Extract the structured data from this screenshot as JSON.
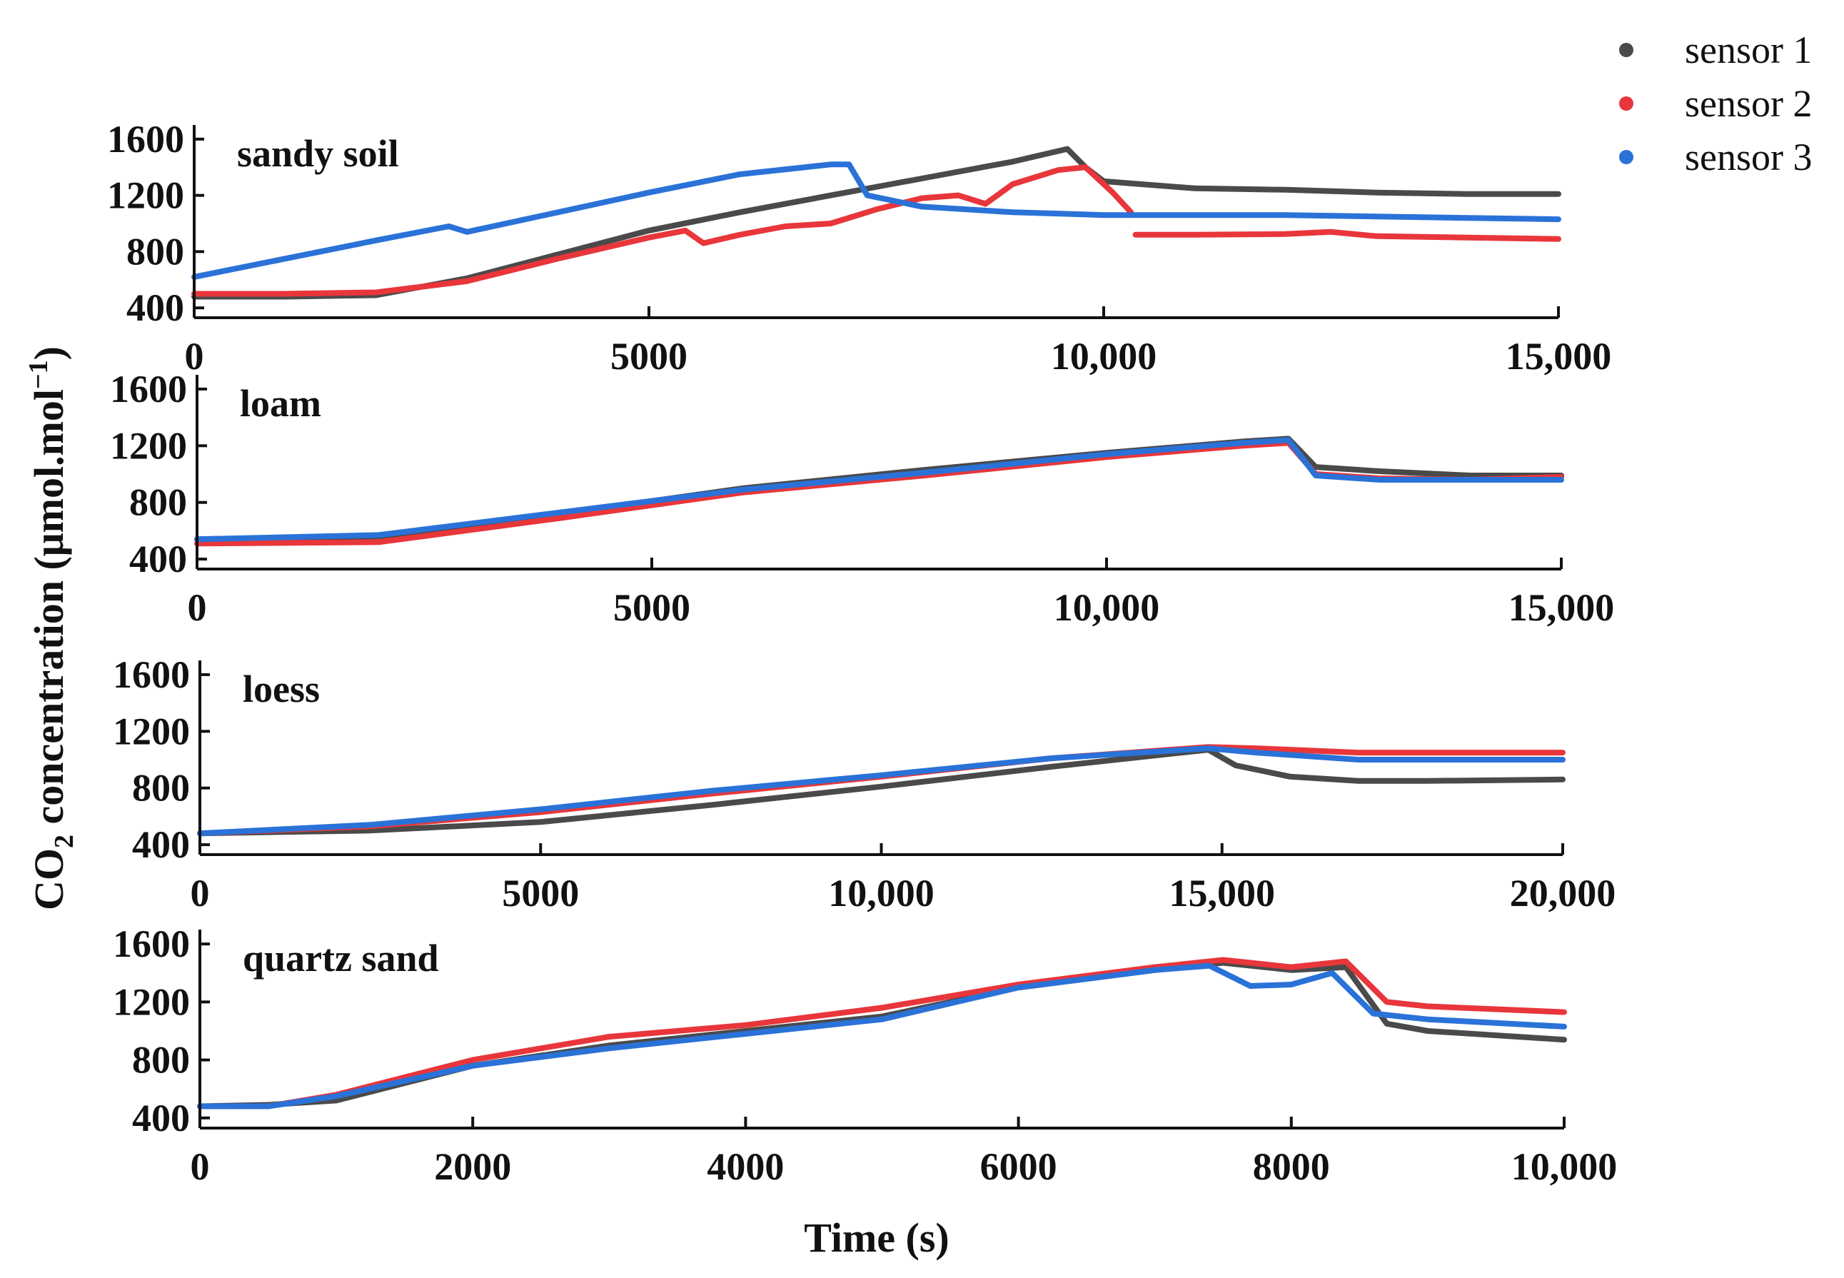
{
  "chart_data": {
    "type": "line",
    "ylabel_main": "CO",
    "ylabel_sub": "2",
    "ylabel_rest": " concentration (μmol.mol",
    "ylabel_sup": "−1",
    "ylabel_close": ")",
    "xlabel": "Time (s)",
    "legend": [
      {
        "name": "sensor 1",
        "color": "#4a4a4a"
      },
      {
        "name": "sensor 2",
        "color": "#e8363b"
      },
      {
        "name": "sensor 3",
        "color": "#2a72d8"
      }
    ],
    "panels": [
      {
        "title": "sandy soil",
        "xlim": [
          0,
          15000
        ],
        "ylim": [
          330,
          1650
        ],
        "xticks": [
          0,
          5000,
          10000,
          15000
        ],
        "xtick_labels": [
          "0",
          "5000",
          "10,000",
          "15,000"
        ],
        "yticks": [
          400,
          800,
          1200,
          1600
        ],
        "ytick_labels": [
          "400",
          "800",
          "1200",
          "1600"
        ],
        "series": [
          {
            "name": "sensor 1",
            "x": [
              0,
              1000,
              2000,
              3000,
              4000,
              5000,
              6000,
              7000,
              8000,
              9000,
              9600,
              9800,
              10000,
              11000,
              12000,
              13000,
              14000,
              15000
            ],
            "y": [
              480,
              480,
              490,
              610,
              780,
              950,
              1080,
              1200,
              1320,
              1440,
              1530,
              1400,
              1300,
              1250,
              1240,
              1220,
              1210,
              1210
            ]
          },
          {
            "name": "sensor 2",
            "segments": [
              {
                "x": [
                  0,
                  1000,
                  2000,
                  3000,
                  4000,
                  5000,
                  5400,
                  5600,
                  6000,
                  6500,
                  7000,
                  7500,
                  8000,
                  8400,
                  8700,
                  9000,
                  9500,
                  9800,
                  10100,
                  10300
                ],
                "y": [
                  500,
                  500,
                  510,
                  590,
                  750,
                  900,
                  950,
                  860,
                  920,
                  980,
                  1000,
                  1100,
                  1180,
                  1200,
                  1140,
                  1280,
                  1380,
                  1400,
                  1220,
                  1080
                ]
              },
              {
                "x": [
                  10350,
                  11000,
                  12000,
                  12500,
                  13000,
                  14000,
                  15000
                ],
                "y": [
                  920,
                  920,
                  925,
                  940,
                  910,
                  900,
                  890
                ]
              }
            ]
          },
          {
            "name": "sensor 3",
            "x": [
              0,
              1000,
              2000,
              2800,
              3000,
              4000,
              5000,
              6000,
              7000,
              7200,
              7400,
              8000,
              9000,
              10000,
              11000,
              12000,
              13000,
              14000,
              15000
            ],
            "y": [
              620,
              750,
              880,
              980,
              940,
              1080,
              1220,
              1350,
              1420,
              1420,
              1200,
              1120,
              1080,
              1060,
              1060,
              1060,
              1050,
              1040,
              1030
            ]
          }
        ]
      },
      {
        "title": "loam",
        "xlim": [
          0,
          15000
        ],
        "ylim": [
          330,
          1650
        ],
        "xticks": [
          0,
          5000,
          10000,
          15000
        ],
        "xtick_labels": [
          "0",
          "5000",
          "10,000",
          "15,000"
        ],
        "yticks": [
          400,
          800,
          1200,
          1600
        ],
        "ytick_labels": [
          "400",
          "800",
          "1200",
          "1600"
        ],
        "series": [
          {
            "name": "sensor 1",
            "x": [
              0,
              2000,
              4000,
              6000,
              8000,
              10000,
              11500,
              12000,
              12300,
              13000,
              14000,
              15000
            ],
            "y": [
              540,
              560,
              720,
              900,
              1030,
              1150,
              1230,
              1250,
              1050,
              1020,
              990,
              990
            ]
          },
          {
            "name": "sensor 2",
            "x": [
              0,
              2000,
              4000,
              6000,
              8000,
              10000,
              11500,
              12000,
              12300,
              13000,
              14000,
              15000
            ],
            "y": [
              510,
              520,
              690,
              870,
              990,
              1120,
              1200,
              1220,
              1000,
              970,
              960,
              980
            ]
          },
          {
            "name": "sensor 3",
            "x": [
              0,
              2000,
              4000,
              6000,
              8000,
              10000,
              11500,
              12000,
              12300,
              13000,
              14000,
              15000
            ],
            "y": [
              540,
              570,
              730,
              890,
              1010,
              1140,
              1220,
              1240,
              990,
              960,
              960,
              960
            ]
          }
        ]
      },
      {
        "title": "loess",
        "xlim": [
          0,
          20000
        ],
        "ylim": [
          330,
          1650
        ],
        "xticks": [
          0,
          5000,
          10000,
          15000,
          20000
        ],
        "xtick_labels": [
          "0",
          "5000",
          "10,000",
          "15,000",
          "20,000"
        ],
        "yticks": [
          400,
          800,
          1200,
          1600
        ],
        "ytick_labels": [
          "400",
          "800",
          "1200",
          "1600"
        ],
        "series": [
          {
            "name": "sensor 1",
            "x": [
              0,
              2500,
              5000,
              7500,
              10000,
              12500,
              14800,
              15200,
              16000,
              17000,
              18000,
              20000
            ],
            "y": [
              480,
              500,
              560,
              680,
              810,
              950,
              1070,
              960,
              880,
              850,
              850,
              860
            ]
          },
          {
            "name": "sensor 2",
            "x": [
              0,
              2500,
              5000,
              7500,
              10000,
              12500,
              14800,
              15500,
              17000,
              18000,
              20000
            ],
            "y": [
              480,
              530,
              630,
              760,
              880,
              1010,
              1090,
              1080,
              1050,
              1050,
              1050
            ]
          },
          {
            "name": "sensor 3",
            "x": [
              0,
              2500,
              5000,
              7500,
              10000,
              12500,
              14800,
              15500,
              17000,
              18000,
              20000
            ],
            "y": [
              480,
              540,
              650,
              780,
              890,
              1010,
              1080,
              1050,
              1000,
              1000,
              1000
            ]
          }
        ]
      },
      {
        "title": "quartz sand",
        "xlim": [
          0,
          10000
        ],
        "ylim": [
          330,
          1650
        ],
        "xticks": [
          0,
          2000,
          4000,
          6000,
          8000,
          10000
        ],
        "xtick_labels": [
          "0",
          "2000",
          "4000",
          "6000",
          "8000",
          "10,000"
        ],
        "yticks": [
          400,
          800,
          1200,
          1600
        ],
        "ytick_labels": [
          "400",
          "800",
          "1200",
          "1600"
        ],
        "series": [
          {
            "name": "sensor 1",
            "x": [
              0,
              500,
              1000,
              2000,
              3000,
              4000,
              5000,
              6000,
              7000,
              7500,
              8000,
              8400,
              8700,
              9000,
              10000
            ],
            "y": [
              480,
              490,
              520,
              760,
              900,
              1000,
              1100,
              1300,
              1420,
              1470,
              1420,
              1440,
              1050,
              1000,
              940
            ]
          },
          {
            "name": "sensor 2",
            "x": [
              0,
              500,
              1000,
              2000,
              3000,
              4000,
              5000,
              6000,
              7000,
              7500,
              8000,
              8400,
              8700,
              9000,
              10000
            ],
            "y": [
              480,
              480,
              560,
              800,
              960,
              1040,
              1160,
              1320,
              1440,
              1490,
              1440,
              1480,
              1200,
              1170,
              1130
            ]
          },
          {
            "name": "sensor 3",
            "x": [
              0,
              500,
              1000,
              2000,
              3000,
              4000,
              5000,
              6000,
              7000,
              7400,
              7700,
              8000,
              8300,
              8600,
              9000,
              10000
            ],
            "y": [
              480,
              480,
              550,
              760,
              880,
              980,
              1080,
              1300,
              1420,
              1450,
              1310,
              1320,
              1400,
              1120,
              1080,
              1030
            ]
          }
        ]
      }
    ]
  }
}
